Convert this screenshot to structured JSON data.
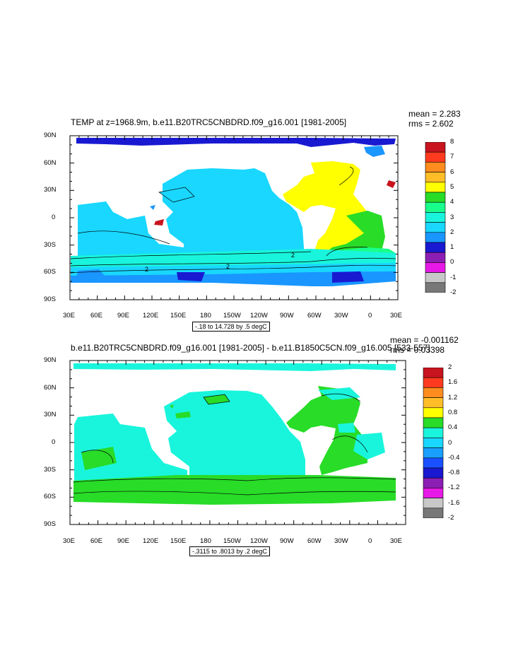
{
  "panels": [
    {
      "title": "TEMP at z=1968.9m, b.e11.B20TRC5CNBDRD.f09_g16.001 [1981-2005]",
      "mean_text": "mean = 2.283",
      "rms_text": "rms = 2.602",
      "contour_info": "-.18 to 14.728 by .5 degC",
      "x_ticks": [
        "30E",
        "60E",
        "90E",
        "120E",
        "150E",
        "180",
        "150W",
        "120W",
        "90W",
        "60W",
        "30W",
        "0",
        "30E"
      ],
      "y_ticks": [
        "90N",
        "60N",
        "30N",
        "0",
        "30S",
        "60S",
        "90S"
      ],
      "colorbar": {
        "labels": [
          "8",
          "7",
          "6",
          "5",
          "4",
          "3",
          "2",
          "1",
          "0",
          "-1",
          "-2"
        ],
        "colors": [
          "#c8141e",
          "#ff3a1e",
          "#ff8c1e",
          "#ffbe28",
          "#ffff00",
          "#28dc28",
          "#19ff8c",
          "#19f5dc",
          "#19d7ff",
          "#1996ff",
          "#1919d2",
          "#8c1eb4",
          "#e619e6",
          "#c8c8c8",
          "#787878"
        ]
      },
      "contour_line_labels": [
        "2",
        "2",
        "2"
      ]
    },
    {
      "title": "b.e11.B20TRC5CNBDRD.f09_g16.001 [1981-2005] - b.e11.B1850C5CN.f09_g16.005 [533-557]",
      "mean_text": "mean = -0.001162",
      "rms_text": "rms = 0.03398",
      "contour_info": "-.3115 to .8013 by .2 degC",
      "x_ticks": [
        "30E",
        "60E",
        "90E",
        "120E",
        "150E",
        "180",
        "150W",
        "120W",
        "90W",
        "60W",
        "30W",
        "0",
        "30E"
      ],
      "y_ticks": [
        "90N",
        "60N",
        "30N",
        "0",
        "30S",
        "60S",
        "90S"
      ],
      "colorbar": {
        "labels": [
          "2",
          "1.6",
          "1.2",
          "0.8",
          "0.4",
          "0",
          "-0.4",
          "-0.8",
          "-1.2",
          "-1.6",
          "-2"
        ],
        "colors": [
          "#c8141e",
          "#ff3a1e",
          "#ff8c1e",
          "#ffbe28",
          "#ffff00",
          "#28dc28",
          "#19f5dc",
          "#19d7ff",
          "#19a0ff",
          "#1950ff",
          "#1919d2",
          "#8c1eb4",
          "#e619e6",
          "#c8c8c8",
          "#787878"
        ]
      }
    }
  ]
}
